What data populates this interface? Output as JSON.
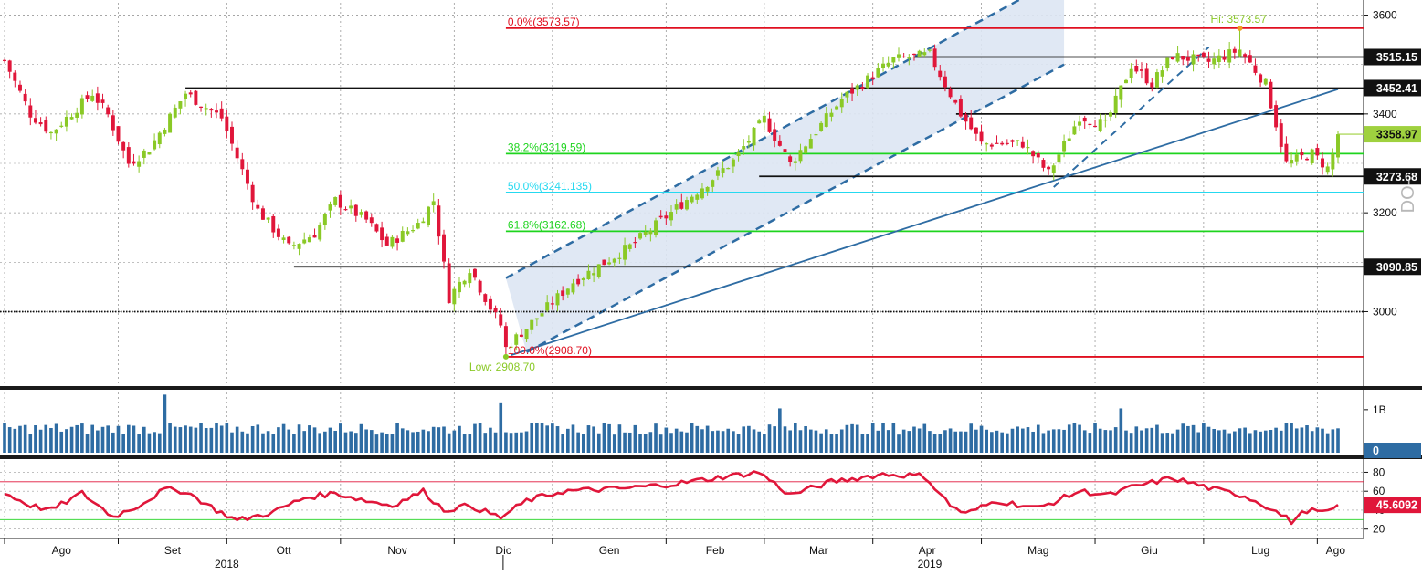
{
  "colors": {
    "up": "#8ac926",
    "down": "#e0163a",
    "volume": "#2e6ca3",
    "rsi_line": "#e0163a",
    "fib_0_100": "#e01020",
    "fib_382_618": "#1ed41e",
    "fib_50": "#25d9f0",
    "channel_fill": "#dde6f3",
    "trendline": "#2e6ca3",
    "last_price_box": "#9fd13f",
    "rsi_box": "#e0163a",
    "grid": "#9a9a9a"
  },
  "chart_data": [
    {
      "type": "candlestick",
      "panel": "price",
      "ylim": [
        2855,
        3625
      ],
      "y_ticks": [
        "3600",
        "3400",
        "3200",
        "3000"
      ],
      "y_tick_values": [
        3600,
        3400,
        3200,
        3000
      ],
      "x_months": [
        {
          "label": "Ago",
          "x": 0
        },
        {
          "label": "Set",
          "x": 22
        },
        {
          "label": "Ott",
          "x": 43
        },
        {
          "label": "Nov",
          "x": 65
        },
        {
          "label": "Dic",
          "x": 87
        },
        {
          "label": "Gen",
          "x": 106
        },
        {
          "label": "Feb",
          "x": 128
        },
        {
          "label": "Mar",
          "x": 147
        },
        {
          "label": "Apr",
          "x": 168
        },
        {
          "label": "Mag",
          "x": 189
        },
        {
          "label": "Giu",
          "x": 211
        },
        {
          "label": "Lug",
          "x": 232
        },
        {
          "label": "Ago",
          "x": 254
        }
      ],
      "x_years": [
        {
          "label": "2018",
          "x": 43
        },
        {
          "label": "2019",
          "x": 179
        }
      ],
      "x_range": [
        0,
        258
      ],
      "waypoints": [
        [
          0,
          3508
        ],
        [
          5,
          3400
        ],
        [
          9,
          3362
        ],
        [
          17,
          3442
        ],
        [
          20,
          3398
        ],
        [
          24,
          3300
        ],
        [
          28,
          3330
        ],
        [
          35,
          3442
        ],
        [
          42,
          3392
        ],
        [
          49,
          3205
        ],
        [
          55,
          3130
        ],
        [
          60,
          3158
        ],
        [
          64,
          3225
        ],
        [
          70,
          3185
        ],
        [
          74,
          3135
        ],
        [
          80,
          3178
        ],
        [
          83,
          3225
        ],
        [
          86,
          3028
        ],
        [
          90,
          3088
        ],
        [
          94,
          3008
        ],
        [
          98,
          2938
        ],
        [
          102,
          2978
        ],
        [
          110,
          3060
        ],
        [
          121,
          3132
        ],
        [
          128,
          3192
        ],
        [
          141,
          3305
        ],
        [
          147,
          3390
        ],
        [
          152,
          3300
        ],
        [
          162,
          3430
        ],
        [
          172,
          3510
        ],
        [
          179,
          3520
        ],
        [
          185,
          3400
        ],
        [
          189,
          3340
        ],
        [
          197,
          3340
        ],
        [
          202,
          3280
        ],
        [
          208,
          3395
        ],
        [
          213,
          3378
        ],
        [
          218,
          3498
        ],
        [
          222,
          3462
        ],
        [
          226,
          3518
        ],
        [
          233,
          3505
        ],
        [
          239,
          3530
        ],
        [
          244,
          3460
        ],
        [
          248,
          3300
        ],
        [
          253,
          3320
        ],
        [
          256,
          3290
        ],
        [
          258,
          3345
        ]
      ],
      "annotations": {
        "high_label": "Hi: 3573.57",
        "low_label": "Low: 2908.70",
        "high_value": 3573.57,
        "high_x": 239,
        "low_value": 2908.7,
        "low_x": 97
      },
      "fib_levels": [
        {
          "label": "0.0%(3573.57)",
          "value": 3573.57,
          "color": "#e01020"
        },
        {
          "label": "38.2%(3319.59)",
          "value": 3319.59,
          "color": "#1ed41e"
        },
        {
          "label": "50.0%(3241.135)",
          "value": 3241.135,
          "color": "#25d9f0"
        },
        {
          "label": "61.8%(3162.68)",
          "value": 3162.68,
          "color": "#1ed41e"
        },
        {
          "label": "100.0%(2908.70)",
          "value": 2908.7,
          "color": "#e01020"
        }
      ],
      "horizontal_levels": [
        {
          "label": "3515.15",
          "value": 3515.15,
          "x_start": 176
        },
        {
          "label": "3452.41",
          "value": 3452.41,
          "x_start": 35
        },
        {
          "label": "3273.68",
          "value": 3273.68,
          "x_start": 146
        },
        {
          "label": "3090.85",
          "value": 3090.85,
          "x_start": 56
        }
      ],
      "extra_lines": [
        {
          "value": 3000,
          "x_start": 0,
          "style": "dotted"
        },
        {
          "value": 3400,
          "x_start": 185,
          "style": "solid"
        }
      ],
      "last_price": {
        "label": "3358.97",
        "value": 3358.97
      },
      "channel": {
        "upper": [
          [
            97,
            3068
          ],
          [
            205,
            3680
          ]
        ],
        "lower": [
          [
            101,
            2918
          ],
          [
            205,
            3500
          ]
        ]
      },
      "trendlines": [
        {
          "points": [
            [
              98,
              2912
            ],
            [
              258,
              3450
            ]
          ],
          "style": "solid"
        },
        {
          "points": [
            [
              203,
              3252
            ],
            [
              233,
              3535
            ]
          ],
          "style": "dashed"
        }
      ],
      "watermark": "DO-"
    },
    {
      "type": "bar",
      "panel": "volume",
      "ylim": [
        0,
        1.4
      ],
      "y_ticks": [
        "1B"
      ],
      "y_tick_values": [
        1
      ],
      "last_value_label": "0",
      "spikes": [
        {
          "x": 31,
          "value": 1.35
        },
        {
          "x": 96,
          "value": 1.17
        },
        {
          "x": 150,
          "value": 1.03
        },
        {
          "x": 216,
          "value": 1.03
        }
      ]
    },
    {
      "type": "line",
      "panel": "rsi",
      "ylim": [
        12,
        92
      ],
      "y_ticks": [
        "80",
        "60",
        "40",
        "20"
      ],
      "y_tick_values": [
        80,
        60,
        40,
        20
      ],
      "overbought": 70,
      "oversold": 30,
      "last_value_label": "45.6092",
      "waypoints": [
        [
          0,
          58
        ],
        [
          5,
          45
        ],
        [
          9,
          40
        ],
        [
          15,
          58
        ],
        [
          21,
          33
        ],
        [
          26,
          45
        ],
        [
          31,
          62
        ],
        [
          35,
          60
        ],
        [
          41,
          40
        ],
        [
          45,
          29
        ],
        [
          52,
          38
        ],
        [
          58,
          53
        ],
        [
          64,
          58
        ],
        [
          70,
          50
        ],
        [
          75,
          45
        ],
        [
          81,
          60
        ],
        [
          85,
          40
        ],
        [
          90,
          45
        ],
        [
          96,
          32
        ],
        [
          101,
          50
        ],
        [
          108,
          60
        ],
        [
          120,
          63
        ],
        [
          130,
          68
        ],
        [
          140,
          76
        ],
        [
          146,
          80
        ],
        [
          152,
          56
        ],
        [
          160,
          70
        ],
        [
          170,
          78
        ],
        [
          178,
          76
        ],
        [
          183,
          45
        ],
        [
          186,
          36
        ],
        [
          192,
          50
        ],
        [
          200,
          42
        ],
        [
          208,
          60
        ],
        [
          214,
          56
        ],
        [
          218,
          64
        ],
        [
          226,
          74
        ],
        [
          234,
          62
        ],
        [
          240,
          55
        ],
        [
          245,
          42
        ],
        [
          249,
          28
        ],
        [
          252,
          40
        ],
        [
          256,
          37
        ],
        [
          258,
          46
        ]
      ]
    }
  ]
}
